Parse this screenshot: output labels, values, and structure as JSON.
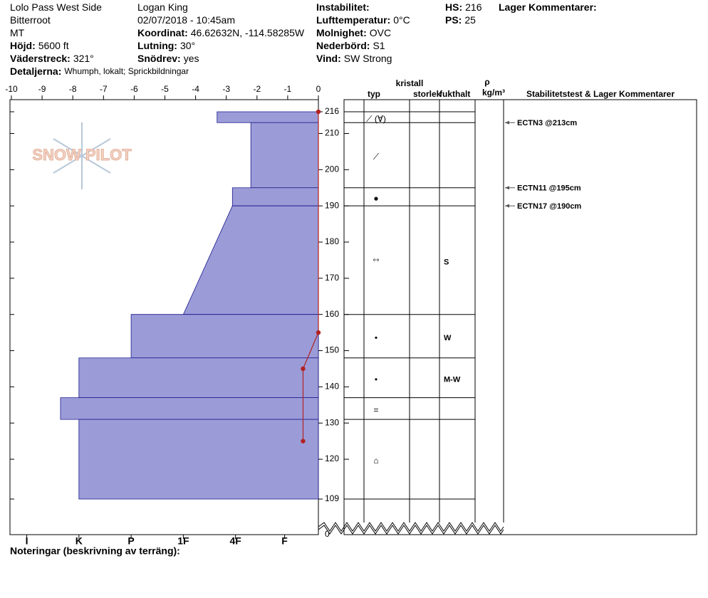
{
  "header": {
    "columns": [
      [
        {
          "value": "Lolo Pass West Side"
        },
        {
          "value": "Bitterroot"
        },
        {
          "value": "MT"
        },
        {
          "label": "Höjd:",
          "value": "5600 ft"
        },
        {
          "label": "Väderstreck:",
          "value": "321°"
        }
      ],
      [
        {
          "value": "Logan King"
        },
        {
          "value": "02/07/2018 - 10:45am"
        },
        {
          "label": "Koordinat:",
          "value": "46.62632N, -114.58285W"
        },
        {
          "label": "Lutning:",
          "value": "30°"
        },
        {
          "label": "Snödrev:",
          "value": "yes"
        }
      ],
      [
        {
          "label": "Instabilitet:"
        },
        {
          "label": "Lufttemperatur:",
          "value": "0°C"
        },
        {
          "label": "Molnighet:",
          "value": "OVC"
        },
        {
          "label": "Nederbörd:",
          "value": "S1"
        },
        {
          "label": "Vind:",
          "value": "SW Strong"
        }
      ],
      [
        {
          "label": "HS:",
          "value": "216"
        },
        {
          "label": "PS:",
          "value": "25"
        }
      ],
      [
        {
          "label": "Lager Kommentarer:"
        }
      ]
    ],
    "details": {
      "label": "Detaljerna:",
      "value": "Whumph, lokalt; Sprickbildningar"
    },
    "notes": "Noteringar (beskrivning av terräng):",
    "logo": "SNOW PILOT"
  },
  "chart_data": {
    "type": "snowpit",
    "xlim": [
      -10,
      0
    ],
    "xticks": [
      -10,
      -9,
      -8,
      -7,
      -6,
      -5,
      -4,
      -3,
      -2,
      -1,
      0
    ],
    "hardness_ticks": [
      {
        "value": -9.5,
        "label": "I"
      },
      {
        "value": -7.8,
        "label": "K"
      },
      {
        "value": -6.1,
        "label": "P"
      },
      {
        "value": -4.4,
        "label": "1F"
      },
      {
        "value": -2.7,
        "label": "4F"
      },
      {
        "value": -1.1,
        "label": "F"
      }
    ],
    "ylim": [
      109,
      216
    ],
    "yticks": [
      216,
      210,
      200,
      190,
      180,
      170,
      160,
      150,
      140,
      130,
      120,
      109
    ],
    "y_base": 0,
    "layer_color": "#9b9bd8",
    "layers": [
      {
        "top": 216,
        "bottom": 213,
        "hardness_top": -3.3,
        "hardness_bottom": -3.3,
        "grain": "⟋ (∀)"
      },
      {
        "top": 213,
        "bottom": 195,
        "hardness_top": -2.2,
        "hardness_bottom": -2.2,
        "grain": "⟋"
      },
      {
        "top": 195,
        "bottom": 190,
        "hardness_top": -2.8,
        "hardness_bottom": -2.8,
        "grain": "●"
      },
      {
        "top": 190,
        "bottom": 160,
        "hardness_top": -2.8,
        "hardness_bottom": -4.4,
        "grain": "°°",
        "moisture": "S"
      },
      {
        "top": 160,
        "bottom": 148,
        "hardness_top": -6.1,
        "hardness_bottom": -6.1,
        "grain": "•",
        "moisture": "W"
      },
      {
        "top": 148,
        "bottom": 137,
        "hardness_top": -7.8,
        "hardness_bottom": -7.8,
        "grain": "•",
        "moisture": "M-W"
      },
      {
        "top": 137,
        "bottom": 131,
        "hardness_top": -8.4,
        "hardness_bottom": -8.4,
        "grain": "="
      },
      {
        "top": 131,
        "bottom": 109,
        "hardness_top": -7.8,
        "hardness_bottom": -7.8,
        "grain": "⌂"
      }
    ],
    "temperature": {
      "color": "#b22222",
      "depths": [
        216,
        155,
        145,
        125
      ],
      "values": [
        0,
        0,
        -0.5,
        -0.5
      ]
    },
    "tests": [
      {
        "depth": 213,
        "label": "ECTN3 @213cm"
      },
      {
        "depth": 195,
        "label": "ECTN11 @195cm"
      },
      {
        "depth": 190,
        "label": "ECTN17 @190cm"
      }
    ],
    "columns": {
      "group": "kristall",
      "type": "typ",
      "size": "storlek",
      "moisture": "fukthalt",
      "rho": "ρ",
      "rho_unit": "kg/m³",
      "comments": "Stabilitetstest & Lager Kommentarer"
    }
  }
}
